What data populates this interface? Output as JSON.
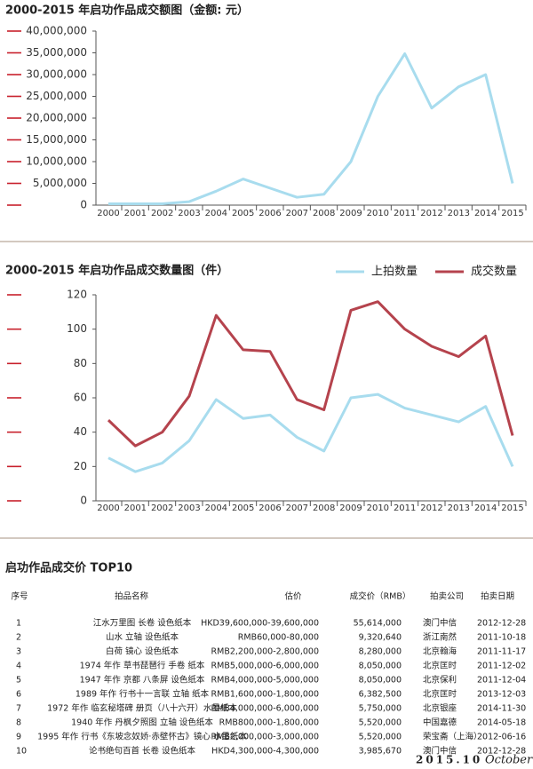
{
  "chart_data": [
    {
      "type": "line",
      "title": "2000-2015 年启功作品成交额图（金额: 元）",
      "categories": [
        "2000",
        "2001",
        "2002",
        "2003",
        "2004",
        "2005",
        "2006",
        "2007",
        "2008",
        "2009",
        "2010",
        "2011",
        "2012",
        "2013",
        "2014",
        "2015"
      ],
      "series": [
        {
          "color": "#a8dcee",
          "values": [
            300000,
            300000,
            300000,
            800000,
            3200000,
            6000000,
            3900000,
            1800000,
            2500000,
            10000000,
            25000000,
            34800000,
            22300000,
            27200000,
            30000000,
            5000000
          ]
        }
      ],
      "ylim": [
        0,
        40000000
      ],
      "yticks": [
        0,
        {
          "value": 5000000,
          "label": "5,000,000"
        },
        {
          "value": 10000000,
          "label": "10,000,000"
        },
        {
          "value": 15000000,
          "label": "15,000,000"
        },
        {
          "value": 20000000,
          "label": "20,000,000"
        },
        {
          "value": 25000000,
          "label": "25,000,000"
        },
        {
          "value": 30000000,
          "label": "30,000,000"
        },
        {
          "value": 35000000,
          "label": "35,000,000"
        },
        {
          "value": 40000000,
          "label": "40,000,000"
        }
      ]
    },
    {
      "type": "line",
      "title": "2000-2015 年启功作品成交数量图（件）",
      "categories": [
        "2000",
        "2001",
        "2002",
        "2003",
        "2004",
        "2005",
        "2006",
        "2007",
        "2008",
        "2009",
        "2010",
        "2011",
        "2012",
        "2013",
        "2014",
        "2015"
      ],
      "series": [
        {
          "name": "上拍数量",
          "color": "#a8dcee",
          "values": [
            25,
            17,
            22,
            35,
            59,
            48,
            50,
            37,
            29,
            60,
            62,
            54,
            50,
            46,
            55,
            20
          ]
        },
        {
          "name": "成交数量",
          "color": "#b5434d",
          "values": [
            47,
            32,
            40,
            61,
            108,
            88,
            87,
            59,
            53,
            111,
            116,
            100,
            90,
            84,
            96,
            38
          ]
        }
      ],
      "ylim": [
        0,
        120
      ],
      "yticks": [
        0,
        20,
        40,
        60,
        80,
        100,
        120
      ],
      "legend": "top-right"
    }
  ],
  "table": {
    "title": "启功作品成交价 TOP10",
    "header": [
      "序号",
      "拍品名称",
      "估价",
      "成交价（RMB）",
      "拍卖公司",
      "拍卖日期"
    ],
    "rows": [
      [
        "1",
        "江水万里图 长卷 设色纸本",
        "HKD39,600,000-39,600,000",
        "55,614,000",
        "澳门中信",
        "2012-12-28"
      ],
      [
        "2",
        "山水 立轴 设色纸本",
        "RMB60,000-80,000",
        "9,320,640",
        "浙江南然",
        "2011-10-18"
      ],
      [
        "3",
        "白荷 镜心 设色纸本",
        "RMB2,200,000-2,800,000",
        "8,280,000",
        "北京翰海",
        "2011-11-17"
      ],
      [
        "4",
        "1974 年作 草书琵琶行 手卷 纸本",
        "RMB5,000,000-6,000,000",
        "8,050,000",
        "北京匡时",
        "2011-12-02"
      ],
      [
        "5",
        "1947 年作 京都 八条屏 设色纸本",
        "RMB4,000,000-5,000,000",
        "8,050,000",
        "北京保利",
        "2011-12-04"
      ],
      [
        "6",
        "1989 年作 行书十一言联 立轴 纸本",
        "RMB1,600,000-1,800,000",
        "6,382,500",
        "北京匡时",
        "2013-12-03"
      ],
      [
        "7",
        "1972 年作 临玄秘塔碑 册页（八十六开）水墨纸本",
        "RMB4,000,000-6,000,000",
        "5,750,000",
        "北京银座",
        "2014-11-30"
      ],
      [
        "8",
        "1940 年作 丹枫夕照图 立轴 设色纸本",
        "RMB800,000-1,800,000",
        "5,520,000",
        "中国嘉德",
        "2014-05-18"
      ],
      [
        "9",
        "1995 年作 行书《东坡念奴娇·赤壁怀古》镜心 水墨纸本",
        "RMB2,000,000-3,000,000",
        "5,520,000",
        "荣宝斋（上海）",
        "2012-06-16"
      ],
      [
        "10",
        "论书绝句百首 长卷 设色纸本",
        "HKD4,300,000-4,300,000",
        "3,985,670",
        "澳门中信",
        "2012-12-28"
      ]
    ]
  },
  "footer": {
    "date": "2015.10",
    "month": "October"
  }
}
